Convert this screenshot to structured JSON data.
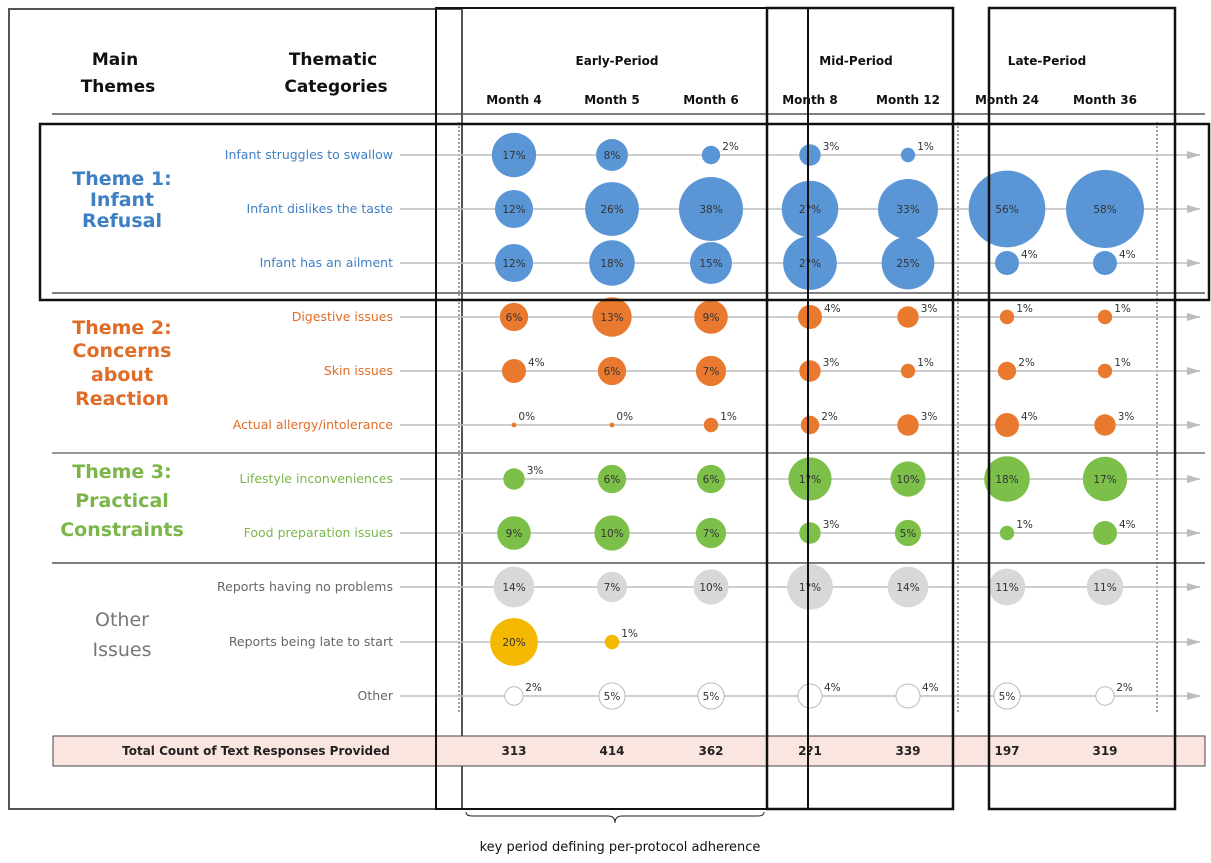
{
  "header": {
    "main_themes": [
      "Main",
      "Themes"
    ],
    "thematic_categories": [
      "Thematic",
      "Categories"
    ]
  },
  "periods": [
    {
      "label": "Early-Period"
    },
    {
      "label": "Mid-Period"
    },
    {
      "label": "Late-Period"
    }
  ],
  "bracket_caption": "key period defining per-protocol adherence",
  "chart_data": {
    "type": "bubble",
    "months": [
      "Month 4",
      "Month 5",
      "Month 6",
      "Month 8",
      "Month 12",
      "Month 24",
      "Month 36"
    ],
    "themes": [
      {
        "label": [
          "Theme 1:",
          "Infant",
          "Refusal"
        ],
        "color": "#3f7fc4"
      },
      {
        "label": [
          "Theme 2:",
          "Concerns",
          "about",
          "Reaction"
        ],
        "color": "#df6c27"
      },
      {
        "label": [
          "Theme 3:",
          "Practical",
          "Constraints"
        ],
        "color": "#7ab648"
      },
      {
        "label": [
          "Other",
          "Issues"
        ],
        "color": "#777777"
      }
    ],
    "rows": [
      {
        "category": "Infant struggles to swallow",
        "theme": 0,
        "color": "#5a95d6",
        "values": [
          17,
          8,
          2,
          3,
          1,
          null,
          null
        ],
        "labels": [
          "17%",
          "8%",
          "2%",
          "3%",
          "1%",
          null,
          null
        ]
      },
      {
        "category": "Infant dislikes the taste",
        "theme": 0,
        "color": "#5a95d6",
        "values": [
          12,
          26,
          38,
          29,
          33,
          56,
          58
        ],
        "labels": [
          "12%",
          "26%",
          "38%",
          "2?%",
          "33%",
          "56%",
          "58%"
        ]
      },
      {
        "category": "Infant has an ailment",
        "theme": 0,
        "color": "#5a95d6",
        "values": [
          12,
          18,
          15,
          26,
          25,
          4,
          4
        ],
        "labels": [
          "12%",
          "18%",
          "15%",
          "2?%",
          "25%",
          "4%",
          "4%"
        ]
      },
      {
        "category": "Digestive issues",
        "theme": 1,
        "color": "#e8792f",
        "values": [
          6,
          13,
          9,
          4,
          3,
          1,
          1
        ],
        "labels": [
          "6%",
          "13%",
          "9%",
          "4%",
          "3%",
          "1%",
          "1%"
        ]
      },
      {
        "category": "Skin issues",
        "theme": 1,
        "color": "#e8792f",
        "values": [
          4,
          6,
          7,
          3,
          1,
          2,
          1
        ],
        "labels": [
          "4%",
          "6%",
          "7%",
          "3%",
          "1%",
          "2%",
          "1%"
        ]
      },
      {
        "category": "Actual allergy/intolerance",
        "theme": 1,
        "color": "#e8792f",
        "values": [
          0,
          0,
          1,
          2,
          3,
          4,
          3
        ],
        "labels": [
          "0%",
          "0%",
          "1%",
          "2%",
          "3%",
          "4%",
          "3%"
        ]
      },
      {
        "category": "Lifestyle inconveniences",
        "theme": 2,
        "color": "#7cc04a",
        "values": [
          3,
          6,
          6,
          16,
          10,
          18,
          17
        ],
        "labels": [
          "3%",
          "6%",
          "6%",
          "1?%",
          "10%",
          "18%",
          "17%"
        ]
      },
      {
        "category": "Food preparation issues",
        "theme": 2,
        "color": "#7cc04a",
        "values": [
          9,
          10,
          7,
          3,
          5,
          1,
          4
        ],
        "labels": [
          "9%",
          "10%",
          "7%",
          "3%",
          "5%",
          "1%",
          "4%"
        ]
      },
      {
        "category": "Reports having no problems",
        "theme": 3,
        "color": "#d8d8d8",
        "values": [
          14,
          7,
          10,
          18,
          14,
          11,
          11
        ],
        "labels": [
          "14%",
          "7%",
          "10%",
          "1?%",
          "14%",
          "11%",
          "11%"
        ]
      },
      {
        "category": "Reports being late to start",
        "theme": 3,
        "color": "#f5b800",
        "values": [
          20,
          1,
          null,
          null,
          null,
          null,
          null
        ],
        "labels": [
          "20%",
          "1%",
          null,
          null,
          null,
          null,
          null
        ]
      },
      {
        "category": "Other",
        "theme": 3,
        "color": "#ffffff",
        "values": [
          2,
          5,
          5,
          4,
          4,
          5,
          2
        ],
        "labels": [
          "2%",
          "5%",
          "5%",
          "4%",
          "4%",
          "5%",
          "2%"
        ]
      }
    ],
    "totals": {
      "label": "Total Count of Text Responses Provided",
      "values": [
        "313",
        "414",
        "362",
        "2?1",
        "339",
        "197",
        "319"
      ]
    }
  }
}
